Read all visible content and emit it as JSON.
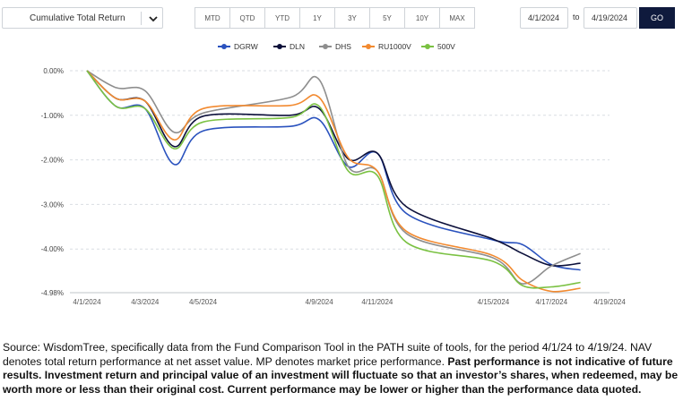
{
  "controls": {
    "metric_select": "Cumulative Total Return",
    "periods": [
      "MTD",
      "QTD",
      "YTD",
      "1Y",
      "3Y",
      "5Y",
      "10Y",
      "MAX"
    ],
    "date_from": "4/1/2024",
    "to_label": "to",
    "date_to": "4/19/2024",
    "go_label": "GO"
  },
  "chart_data": {
    "type": "line",
    "title": "",
    "xlabel": "",
    "ylabel": "",
    "legend_position": "top-center",
    "grid": "horizontal dashed",
    "x_tick_labels": [
      "4/1/2024",
      "4/3/2024",
      "4/5/2024",
      "4/9/2024",
      "4/11/2024",
      "4/15/2024",
      "4/17/2024",
      "4/19/2024"
    ],
    "y_tick_values": [
      0.0,
      -1.0,
      -2.0,
      -3.0,
      -4.0,
      -4.98
    ],
    "y_tick_labels": [
      "0.00%",
      "-1.00%",
      "-2.00%",
      "-3.00%",
      "-4.00%",
      "-4.98%"
    ],
    "ylim": [
      -4.98,
      0.0
    ],
    "x": [
      "4/1/2024",
      "4/2/2024",
      "4/3/2024",
      "4/4/2024",
      "4/5/2024",
      "4/8/2024",
      "4/9/2024",
      "4/10/2024",
      "4/11/2024",
      "4/12/2024",
      "4/15/2024",
      "4/16/2024",
      "4/17/2024",
      "4/18/2024"
    ],
    "series": [
      {
        "name": "DGRW",
        "color": "#2a52be",
        "values": [
          0.0,
          -0.8,
          -0.85,
          -2.1,
          -1.35,
          -1.25,
          -1.1,
          -2.15,
          -1.85,
          -3.2,
          -3.8,
          -3.9,
          -4.35,
          -4.47
        ]
      },
      {
        "name": "DLN",
        "color": "#0b0f3a",
        "values": [
          0.0,
          -0.62,
          -0.68,
          -1.7,
          -1.02,
          -1.0,
          -0.85,
          -1.98,
          -1.85,
          -3.05,
          -3.78,
          -4.1,
          -4.37,
          -4.32
        ]
      },
      {
        "name": "DHS",
        "color": "#8e8e8e",
        "values": [
          0.0,
          -0.38,
          -0.45,
          -1.38,
          -0.95,
          -0.6,
          -0.2,
          -2.15,
          -2.25,
          -3.65,
          -4.2,
          -4.78,
          -4.38,
          -4.1
        ]
      },
      {
        "name": "RU1000V",
        "color": "#f28a30",
        "values": [
          0.0,
          -0.62,
          -0.68,
          -1.55,
          -0.85,
          -0.78,
          -0.6,
          -1.95,
          -2.25,
          -3.6,
          -4.15,
          -4.7,
          -4.95,
          -4.88
        ]
      },
      {
        "name": "500V",
        "color": "#7ac142",
        "values": [
          0.0,
          -0.8,
          -0.85,
          -1.75,
          -1.15,
          -1.05,
          -0.8,
          -2.25,
          -2.35,
          -3.85,
          -4.28,
          -4.82,
          -4.85,
          -4.75
        ]
      }
    ]
  },
  "footnote": {
    "normal": "Source: WisdomTree, specifically data from the Fund Comparison Tool in the PATH suite of tools, for the period 4/1/24 to 4/19/24. NAV denotes total return performance at net asset value. MP denotes market price performance. ",
    "bold": "Past performance is not indicative of future results. Investment return and principal value of an investment will fluctuate so that an investor’s shares, when redeemed, may be worth more or less than their original cost. Current performance may be lower or higher than the performance data quoted."
  }
}
